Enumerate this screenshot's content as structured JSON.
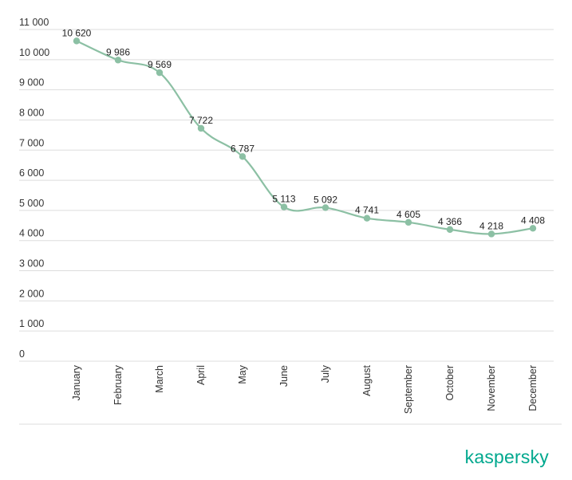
{
  "chart_data": {
    "type": "line",
    "categories": [
      "January",
      "February",
      "March",
      "April",
      "May",
      "June",
      "July",
      "August",
      "September",
      "October",
      "November",
      "December"
    ],
    "series": [
      {
        "name": "",
        "values": [
          10620,
          9986,
          9569,
          7722,
          6787,
          5113,
          5092,
          4741,
          4605,
          4366,
          4218,
          4408
        ],
        "value_labels": [
          "10 620",
          "9 986",
          "9 569",
          "7 722",
          "6 787",
          "5 113",
          "5 092",
          "4 741",
          "4 605",
          "4 366",
          "4 218",
          "4 408"
        ]
      }
    ],
    "yticks": [
      0,
      1000,
      2000,
      3000,
      4000,
      5000,
      6000,
      7000,
      8000,
      9000,
      10000,
      11000
    ],
    "ytick_labels": [
      "0",
      "1 000",
      "2 000",
      "3 000",
      "4 000",
      "5 000",
      "6 000",
      "7 000",
      "8 000",
      "9 000",
      "10 000",
      "11 000"
    ],
    "ylim": [
      0,
      11000
    ],
    "title": "",
    "xlabel": "",
    "ylabel": "",
    "grid": true,
    "line_color": "#8cc0a4",
    "grid_color": "#dddddd"
  },
  "brand": {
    "name": "kaspersky",
    "color": "#00a88e"
  }
}
